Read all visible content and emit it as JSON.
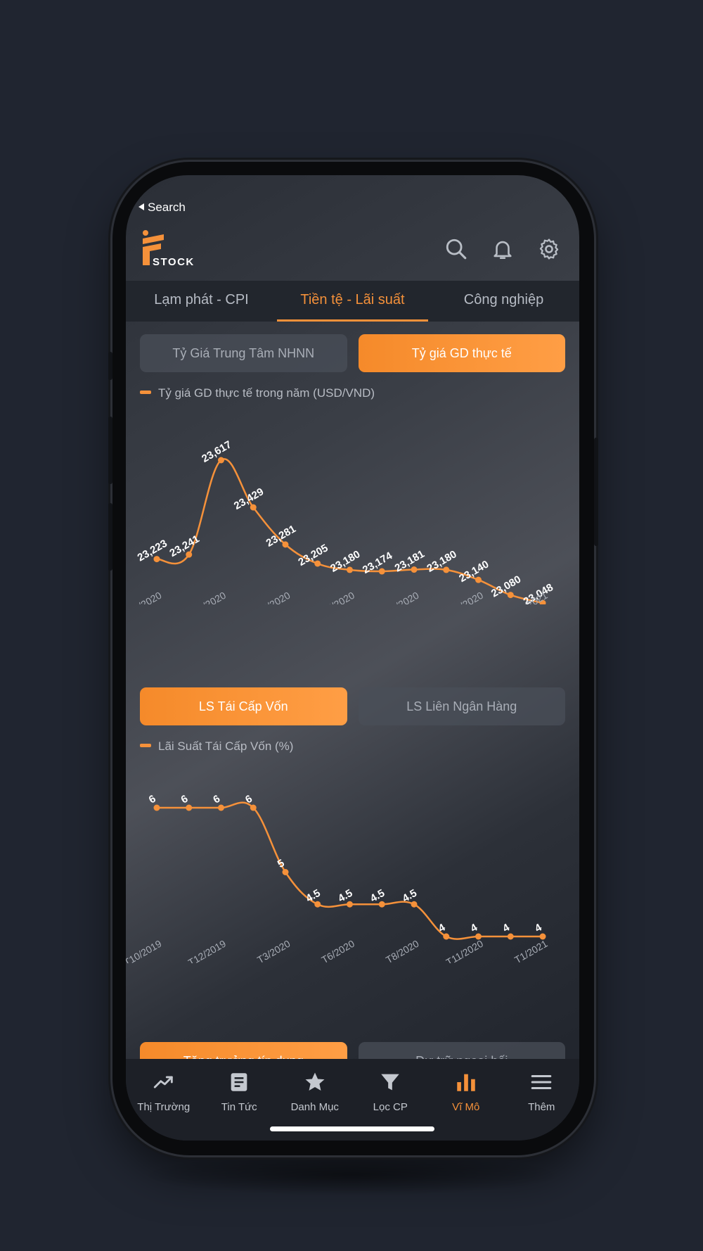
{
  "status": {
    "back_label": "Search"
  },
  "brand": {
    "logo_text": "STOCK"
  },
  "header_icons": [
    "search-icon",
    "bell-icon",
    "gear-icon"
  ],
  "tabs": [
    {
      "label": "Lạm phát - CPI"
    },
    {
      "label": "Tiền tệ - Lãi suất",
      "active": true
    },
    {
      "label": "Công nghiệp"
    }
  ],
  "exchange": {
    "buttons": [
      {
        "label": "Tỷ Giá Trung Tâm NHNN"
      },
      {
        "label": "Tỷ giá GD thực tế",
        "active": true
      }
    ],
    "legend": "Tỷ giá GD thực tế trong năm (USD/VND)"
  },
  "rate": {
    "buttons": [
      {
        "label": "LS Tái Cấp Vốn",
        "active": true
      },
      {
        "label": "LS Liên Ngân Hàng"
      }
    ],
    "legend": "Lãi Suất Tái Cấp Vốn (%)"
  },
  "partial_buttons": [
    {
      "label": "Tăng trưởng tín dụng"
    },
    {
      "label": "Dự trữ ngoại hối"
    }
  ],
  "nav": [
    {
      "label": "Thị Trường",
      "icon": "trend-icon"
    },
    {
      "label": "Tin Tức",
      "icon": "news-icon"
    },
    {
      "label": "Danh Mục",
      "icon": "star-icon"
    },
    {
      "label": "Lọc CP",
      "icon": "filter-icon"
    },
    {
      "label": "Vĩ Mô",
      "icon": "bar-chart-icon",
      "active": true
    },
    {
      "label": "Thêm",
      "icon": "menu-icon"
    }
  ],
  "colors": {
    "accent": "#f5913a",
    "background": "#202530",
    "navbar": "#1d2027"
  },
  "chart_data": [
    {
      "type": "line",
      "title": "Tỷ giá GD thực tế trong năm (USD/VND)",
      "x": [
        "T1/2020",
        "T2/2020",
        "T3/2020",
        "T4/2020",
        "T5/2020",
        "T6/2020",
        "T7/2020",
        "T8/2020",
        "T9/2020",
        "T10/2020",
        "T11/2020",
        "T12/2020",
        "T1/2021"
      ],
      "tick_labels": [
        "T1/2020",
        "T3/2020",
        "T5/2020",
        "T7/2020",
        "T9/2020",
        "T11/2020",
        "T1/2021"
      ],
      "values": [
        23223,
        23241,
        23617,
        23429,
        23281,
        23205,
        23180,
        23174,
        23181,
        23180,
        23140,
        23080,
        23048
      ],
      "labels": [
        "23,223",
        "23,241",
        "23,617",
        "23,429",
        "23,281",
        "23,205",
        "23,180",
        "23,174",
        "23,181",
        "23,180",
        "23,140",
        "23,080",
        "23,048"
      ],
      "ylim": [
        23048,
        23617
      ],
      "grid": false
    },
    {
      "type": "line",
      "title": "Lãi Suất Tái Cấp Vốn (%)",
      "x": [
        "T10/2019",
        "T11/2019",
        "T12/2019",
        "T1/2020",
        "T3/2020",
        "T5/2020",
        "T6/2020",
        "T7/2020",
        "T8/2020",
        "T10/2020",
        "T11/2020",
        "T12/2020",
        "T1/2021"
      ],
      "tick_labels": [
        "T10/2019",
        "T12/2019",
        "T3/2020",
        "T6/2020",
        "T8/2020",
        "T11/2020",
        "T1/2021"
      ],
      "values": [
        6,
        6,
        6,
        6,
        5,
        4.5,
        4.5,
        4.5,
        4.5,
        4,
        4,
        4,
        4
      ],
      "labels": [
        "6",
        "6",
        "6",
        "6",
        "5",
        "4.5",
        "4.5",
        "4.5",
        "4.5",
        "4",
        "4",
        "4",
        "4"
      ],
      "ylim": [
        4,
        6
      ],
      "grid": false
    }
  ]
}
